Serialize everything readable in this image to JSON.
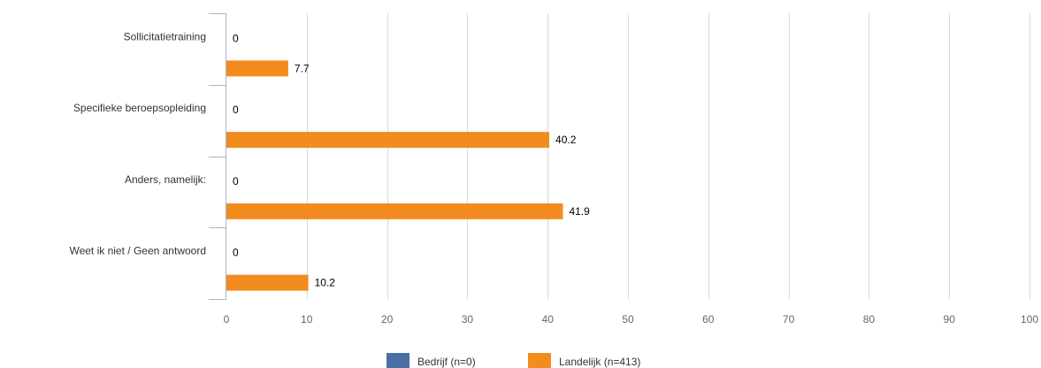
{
  "chart_data": {
    "type": "bar",
    "orientation": "horizontal",
    "title": "",
    "xlabel": "",
    "ylabel": "",
    "categories": [
      "Sollicitatietraining",
      "Specifieke beroepsopleiding",
      "Anders, namelijk:",
      "Weet ik niet / Geen antwoord"
    ],
    "series": [
      {
        "name": "Bedrijf (n=0)",
        "color": "#4a6fa5",
        "values": [
          0,
          0,
          0,
          0
        ],
        "labels": [
          "0",
          "0",
          "0",
          "0"
        ]
      },
      {
        "name": "Landelijk (n=413)",
        "color": "#f28c1e",
        "values": [
          7.7,
          40.2,
          41.9,
          10.2
        ],
        "labels": [
          "7.7",
          "40.2",
          "41.9",
          "10.2"
        ]
      }
    ],
    "xlim": [
      0,
      100
    ],
    "xticks": [
      "0",
      "10",
      "20",
      "30",
      "40",
      "50",
      "60",
      "70",
      "80",
      "90",
      "100"
    ],
    "grid": true,
    "legend_position": "bottom"
  }
}
